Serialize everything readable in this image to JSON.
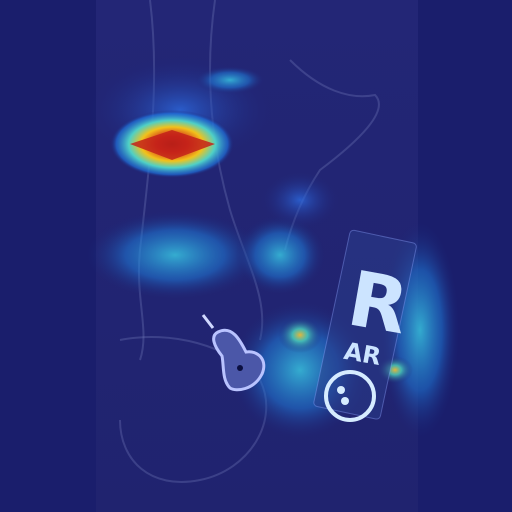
{
  "image": {
    "kind": "x-ray-with-heatmap-overlay",
    "palette": {
      "background": "#1d2172",
      "hot": "#d22a1a",
      "warm": "#f2c21b",
      "cool": "#2ea3d6"
    }
  },
  "marker": {
    "letters_main": "R",
    "letters_sub": "AR"
  },
  "icons": {
    "marker_symbol": "circle-dots-icon",
    "arrow_pointer": "arrow-pointer-icon"
  }
}
